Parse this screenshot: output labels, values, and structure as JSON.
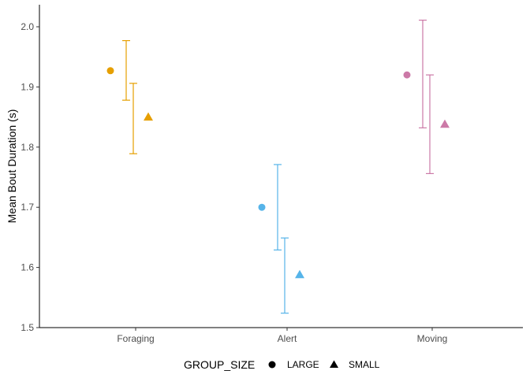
{
  "chart_data": {
    "type": "scatter",
    "title": "",
    "xlabel": "",
    "ylabel": "Mean Bout Duration (s)",
    "categories": [
      "Foraging",
      "Alert",
      "Moving"
    ],
    "ylim": [
      1.5,
      2.05
    ],
    "yticks": [
      1.5,
      1.6,
      1.7,
      1.8,
      1.9,
      2.0
    ],
    "ytick_labels": [
      "1.5",
      "1.6",
      "1.7",
      "1.8",
      "1.9",
      "2.0"
    ],
    "grid": false,
    "category_colors": {
      "Foraging": "#E69F00",
      "Alert": "#56B4E9",
      "Moving": "#CC79A7"
    },
    "legend": {
      "title": "GROUP_SIZE",
      "placement": "bottom",
      "entries": [
        {
          "label": "LARGE",
          "shape": "circle"
        },
        {
          "label": "SMALL",
          "shape": "triangle"
        }
      ]
    },
    "series": [
      {
        "name": "LARGE",
        "shape": "circle",
        "values": [
          1.927,
          1.7,
          1.92
        ],
        "error_low": [
          1.878,
          1.629,
          1.832
        ],
        "error_high": [
          1.977,
          1.771,
          2.011
        ]
      },
      {
        "name": "SMALL",
        "shape": "triangle",
        "values": [
          1.85,
          1.588,
          1.838
        ],
        "error_low": [
          1.789,
          1.524,
          1.756
        ],
        "error_high": [
          1.906,
          1.649,
          1.92
        ]
      }
    ]
  }
}
